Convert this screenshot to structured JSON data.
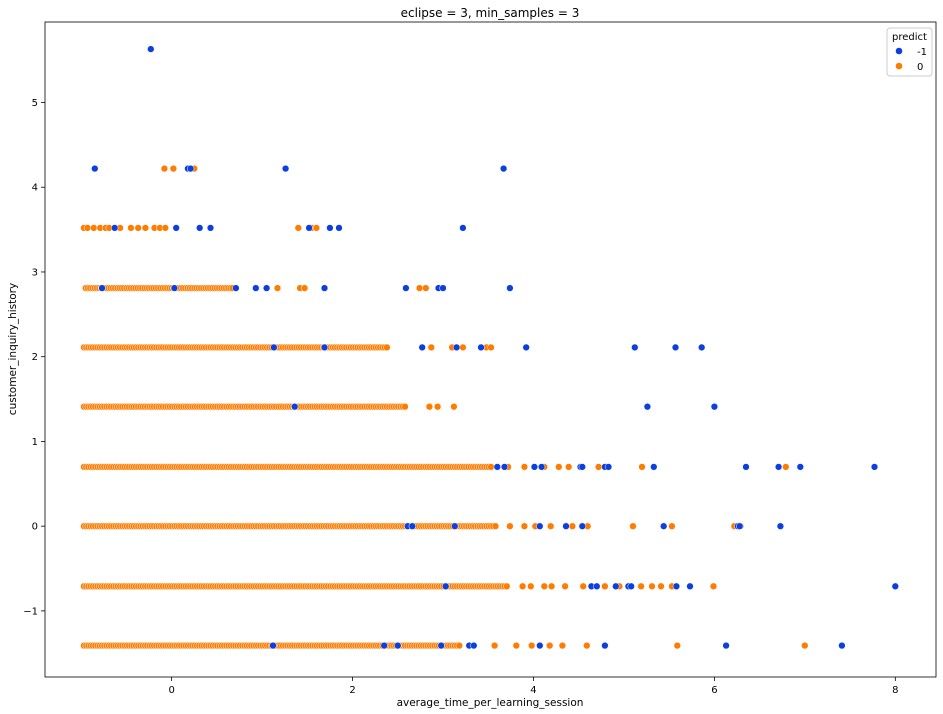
{
  "chart_data": {
    "type": "scatter",
    "title": "eclipse = 3, min_samples = 3",
    "xlabel": "average_time_per_learning_session",
    "ylabel": "customer_inquiry_history",
    "xlim": [
      -1.4,
      8.45
    ],
    "ylim": [
      -1.78,
      5.95
    ],
    "xticks": [
      0,
      2,
      4,
      6,
      8
    ],
    "yticks": [
      -1,
      0,
      1,
      2,
      3,
      4,
      5
    ],
    "xtick_labels": [
      "0",
      "2",
      "4",
      "6",
      "8"
    ],
    "ytick_labels": [
      "−1",
      "0",
      "1",
      "2",
      "3",
      "4",
      "5"
    ],
    "grid": false,
    "legend": {
      "title": "predict",
      "position": "top-right",
      "entries": [
        {
          "label": "-1",
          "color": "#0d3fe0"
        },
        {
          "label": "0",
          "color": "#ff7c00"
        }
      ]
    },
    "series": [
      {
        "name": "-1",
        "color": "#0d3fe0",
        "points": [
          [
            -0.23,
            5.63
          ],
          [
            -0.85,
            4.22
          ],
          [
            0.18,
            4.22
          ],
          [
            0.21,
            4.22
          ],
          [
            1.26,
            4.22
          ],
          [
            3.67,
            4.22
          ],
          [
            -0.63,
            3.52
          ],
          [
            0.05,
            3.52
          ],
          [
            0.31,
            3.52
          ],
          [
            0.43,
            3.52
          ],
          [
            1.52,
            3.52
          ],
          [
            1.75,
            3.52
          ],
          [
            1.85,
            3.52
          ],
          [
            3.22,
            3.52
          ],
          [
            -0.77,
            2.81
          ],
          [
            0.03,
            2.81
          ],
          [
            0.71,
            2.81
          ],
          [
            0.93,
            2.81
          ],
          [
            1.05,
            2.81
          ],
          [
            1.69,
            2.81
          ],
          [
            2.59,
            2.81
          ],
          [
            2.95,
            2.81
          ],
          [
            3.0,
            2.81
          ],
          [
            3.74,
            2.81
          ],
          [
            1.13,
            2.11
          ],
          [
            1.69,
            2.11
          ],
          [
            2.77,
            2.11
          ],
          [
            3.15,
            2.11
          ],
          [
            3.42,
            2.11
          ],
          [
            3.92,
            2.11
          ],
          [
            5.12,
            2.11
          ],
          [
            5.57,
            2.11
          ],
          [
            5.86,
            2.11
          ],
          [
            1.36,
            1.41
          ],
          [
            5.26,
            1.41
          ],
          [
            6.0,
            1.41
          ],
          [
            3.6,
            0.7
          ],
          [
            3.68,
            0.7
          ],
          [
            4.01,
            0.7
          ],
          [
            4.09,
            0.7
          ],
          [
            4.52,
            0.7
          ],
          [
            4.54,
            0.7
          ],
          [
            4.79,
            0.7
          ],
          [
            4.83,
            0.7
          ],
          [
            5.33,
            0.7
          ],
          [
            6.35,
            0.7
          ],
          [
            6.71,
            0.7
          ],
          [
            6.95,
            0.7
          ],
          [
            7.77,
            0.7
          ],
          [
            2.61,
            0.0
          ],
          [
            2.66,
            0.0
          ],
          [
            3.13,
            0.0
          ],
          [
            4.07,
            0.0
          ],
          [
            4.36,
            0.0
          ],
          [
            4.54,
            0.0
          ],
          [
            5.44,
            0.0
          ],
          [
            6.26,
            0.0
          ],
          [
            6.28,
            0.0
          ],
          [
            6.73,
            0.0
          ],
          [
            3.03,
            -0.71
          ],
          [
            4.64,
            -0.71
          ],
          [
            4.7,
            -0.71
          ],
          [
            4.91,
            -0.71
          ],
          [
            5.05,
            -0.71
          ],
          [
            5.08,
            -0.71
          ],
          [
            5.58,
            -0.71
          ],
          [
            5.73,
            -0.71
          ],
          [
            8.0,
            -0.71
          ],
          [
            1.12,
            -1.41
          ],
          [
            2.35,
            -1.41
          ],
          [
            2.5,
            -1.41
          ],
          [
            2.98,
            -1.41
          ],
          [
            3.29,
            -1.41
          ],
          [
            3.34,
            -1.41
          ],
          [
            4.07,
            -1.41
          ],
          [
            4.79,
            -1.41
          ],
          [
            6.13,
            -1.41
          ],
          [
            7.41,
            -1.41
          ]
        ]
      },
      {
        "name": "0",
        "color": "#ff7c00",
        "bands": [
          {
            "y": 4.22,
            "points": [
              -0.08,
              0.02,
              0.25
            ]
          },
          {
            "y": 3.52,
            "points": [
              -0.97,
              -0.93,
              -0.86,
              -0.79,
              -0.73,
              -0.69,
              -0.57,
              -0.45,
              -0.37,
              -0.29,
              -0.19,
              -0.13,
              -0.07,
              1.4,
              1.55,
              1.6
            ]
          },
          {
            "y": 2.81,
            "range": [
              -0.95,
              0.7
            ],
            "extra": [
              1.17,
              1.42,
              1.47,
              2.74,
              2.81
            ]
          },
          {
            "y": 2.11,
            "range": [
              -0.97,
              2.4
            ],
            "extra": [
              2.87,
              3.1,
              3.22,
              3.48,
              3.53
            ]
          },
          {
            "y": 1.41,
            "range": [
              -0.97,
              2.6
            ],
            "extra": [
              2.85,
              2.94,
              3.12
            ]
          },
          {
            "y": 0.7,
            "range": [
              -0.97,
              3.55
            ],
            "extra": [
              3.72,
              3.9,
              4.12,
              4.28,
              4.39,
              4.72,
              5.2,
              6.79
            ]
          },
          {
            "y": 0.0,
            "range": [
              -0.97,
              3.58
            ],
            "extra": [
              3.74,
              3.9,
              4.02,
              4.19,
              4.43,
              4.6,
              5.1,
              5.53,
              6.22,
              6.29
            ]
          },
          {
            "y": -0.71,
            "range": [
              -0.97,
              3.72
            ],
            "extra": [
              3.88,
              3.97,
              4.12,
              4.2,
              4.35,
              4.55,
              4.79,
              4.95,
              5.19,
              5.31,
              5.41,
              5.53,
              5.99
            ]
          },
          {
            "y": -1.41,
            "range": [
              -0.97,
              3.2
            ],
            "extra": [
              3.57,
              3.81,
              3.98,
              4.18,
              4.32,
              4.59,
              5.59,
              7.0
            ]
          }
        ]
      }
    ]
  }
}
